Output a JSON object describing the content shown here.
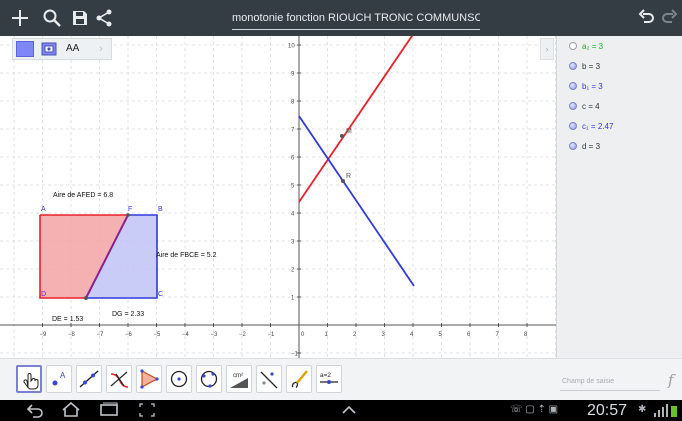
{
  "window": {
    "title": "monotonie fonction  RIOUCH TRONC COMMUNSCUnt",
    "icons": [
      "plus-icon",
      "search-icon",
      "save-icon",
      "share-icon",
      "undo-icon",
      "redo-icon"
    ]
  },
  "style_bar": {
    "text_size_label": "AA",
    "icons": [
      "color-swatch-icon",
      "graphics-settings-icon",
      "collapse-arrow-icon"
    ]
  },
  "algebra": {
    "items": [
      {
        "label": "a₂ = 3",
        "visible": false,
        "color": "#22aa22"
      },
      {
        "label": "b = 3",
        "visible": true,
        "color": "#333333"
      },
      {
        "label": "b₁ = 3",
        "visible": true,
        "color": "#3333dd"
      },
      {
        "label": "c = 4",
        "visible": true,
        "color": "#333333"
      },
      {
        "label": "c₁ = 2.47",
        "visible": true,
        "color": "#3333dd"
      },
      {
        "label": "d = 3",
        "visible": true,
        "color": "#333333"
      }
    ]
  },
  "graphics": {
    "x_ticks": [
      "−9",
      "−8",
      "−7",
      "−6",
      "−5",
      "−4",
      "−3",
      "−2",
      "−1",
      "0",
      "1",
      "2",
      "3",
      "4",
      "5",
      "6",
      "7",
      "8"
    ],
    "y_ticks": [
      "−1",
      "1",
      "2",
      "3",
      "4",
      "5",
      "6",
      "7",
      "8",
      "9",
      "10"
    ],
    "labels": {
      "aire_afed": "Aire de  AFED = 6.8",
      "aire_fbce": "Aire de  FBCE = 5.2",
      "de": "DE = 1.53",
      "dg": "DG = 2.33",
      "pt_A": "A",
      "pt_B": "B",
      "pt_C": "C",
      "pt_D": "D",
      "pt_F": "F",
      "pt_M": "M",
      "pt_R": "R"
    },
    "colors": {
      "red": "#e8202a",
      "blue": "#2f3ad8",
      "red_fill": "#f3a3a5",
      "blue_fill": "#c3c6f5"
    }
  },
  "toolbar": {
    "tools": [
      "move-tool-icon",
      "point-tool-icon",
      "line-tool-icon",
      "perpendicular-tool-icon",
      "polygon-tool-icon",
      "circle-tool-icon",
      "conic-tool-icon",
      "measure-tool-icon",
      "reflect-tool-icon",
      "slider-tool-icon",
      "input-tool-icon"
    ],
    "slider_label": "a=2",
    "measure_label": "cm²",
    "input_placeholder": "Champ de saisie",
    "input_fx": "f"
  },
  "navbar": {
    "time": "20:57",
    "icons": [
      "back-icon",
      "home-icon",
      "recent-apps-icon",
      "screenshot-icon",
      "expand-icon",
      "status-icons"
    ]
  }
}
